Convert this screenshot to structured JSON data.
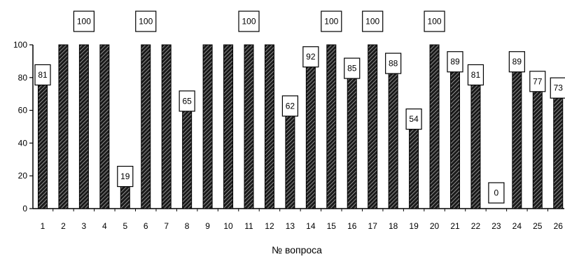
{
  "chart_data": {
    "type": "bar",
    "categories": [
      "1",
      "2",
      "3",
      "4",
      "5",
      "6",
      "7",
      "8",
      "9",
      "10",
      "11",
      "12",
      "13",
      "14",
      "15",
      "16",
      "17",
      "18",
      "19",
      "20",
      "21",
      "22",
      "23",
      "24",
      "25",
      "26"
    ],
    "values": [
      81,
      100,
      100,
      100,
      19,
      100,
      100,
      65,
      100,
      100,
      100,
      100,
      62,
      92,
      100,
      85,
      100,
      88,
      54,
      100,
      89,
      81,
      0,
      89,
      77,
      73
    ],
    "data_labels": [
      "81",
      "100",
      "100",
      "100",
      "19",
      "100",
      "100",
      "65",
      "100",
      "100",
      "100",
      "100",
      "62",
      "92",
      "100",
      "85",
      "100",
      "88",
      "54",
      "100",
      "89",
      "81",
      "0",
      "89",
      "77",
      "73"
    ],
    "labeled": [
      true,
      false,
      true,
      false,
      true,
      true,
      false,
      true,
      false,
      false,
      true,
      false,
      true,
      true,
      true,
      true,
      true,
      true,
      true,
      true,
      true,
      true,
      true,
      true,
      true,
      true
    ],
    "title": "",
    "xlabel": "№ вопроса",
    "ylabel": "",
    "ylim": [
      0,
      100
    ],
    "yticks": [
      "0",
      "20",
      "40",
      "60",
      "80",
      "100"
    ],
    "grid": false,
    "legend": "none",
    "bar_color": "#1a1a1a",
    "hatch_color": "#bdbdbd"
  }
}
